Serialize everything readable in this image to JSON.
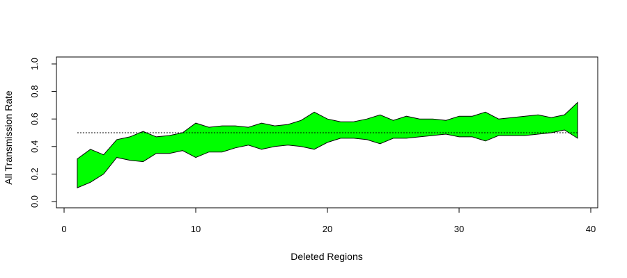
{
  "chart_data": {
    "type": "area",
    "xlabel": "Deleted Regions",
    "ylabel": "All Transmission Rate",
    "xlim": [
      0,
      40
    ],
    "ylim": [
      0,
      1
    ],
    "x_ticks": [
      0,
      10,
      20,
      30,
      40
    ],
    "y_ticks": [
      0.0,
      0.2,
      0.4,
      0.6,
      0.8,
      1.0
    ],
    "y_tick_labels": [
      "0.0",
      "0.2",
      "0.4",
      "0.6",
      "0.8",
      "1.0"
    ],
    "fill_color": "#00ff00",
    "reference_line": {
      "y": 0.5,
      "x_from": 1,
      "x_to": 39,
      "style": "dotted"
    },
    "series": [
      {
        "x": [
          1,
          2,
          3,
          4,
          5,
          6,
          7,
          8,
          9,
          10,
          11,
          12,
          13,
          14,
          15,
          16,
          17,
          18,
          19,
          20,
          21,
          22,
          23,
          24,
          25,
          26,
          27,
          28,
          29,
          30,
          31,
          32,
          33,
          34,
          35,
          36,
          37,
          38,
          39
        ],
        "upper": [
          0.31,
          0.38,
          0.34,
          0.45,
          0.47,
          0.51,
          0.47,
          0.48,
          0.5,
          0.57,
          0.54,
          0.55,
          0.55,
          0.54,
          0.57,
          0.55,
          0.56,
          0.59,
          0.65,
          0.6,
          0.58,
          0.58,
          0.6,
          0.63,
          0.59,
          0.62,
          0.6,
          0.6,
          0.59,
          0.62,
          0.62,
          0.65,
          0.6,
          0.61,
          0.62,
          0.63,
          0.61,
          0.63,
          0.72
        ],
        "lower": [
          0.1,
          0.14,
          0.2,
          0.32,
          0.3,
          0.29,
          0.35,
          0.35,
          0.37,
          0.32,
          0.36,
          0.36,
          0.39,
          0.41,
          0.38,
          0.4,
          0.41,
          0.4,
          0.38,
          0.43,
          0.46,
          0.46,
          0.45,
          0.42,
          0.46,
          0.46,
          0.47,
          0.48,
          0.49,
          0.47,
          0.47,
          0.44,
          0.48,
          0.48,
          0.48,
          0.49,
          0.5,
          0.52,
          0.46
        ]
      }
    ]
  }
}
